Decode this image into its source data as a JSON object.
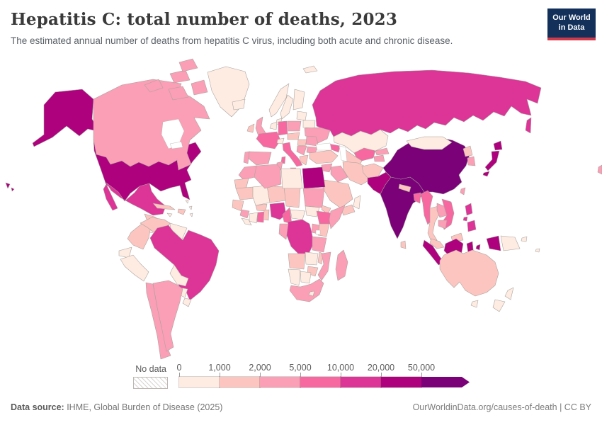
{
  "header": {
    "title": "Hepatitis C: total number of deaths, 2023",
    "subtitle": "The estimated annual number of deaths from hepatitis C virus, including both acute and chronic disease.",
    "logo": {
      "line1": "Our World",
      "line2": "in Data",
      "bg_color": "#12305a",
      "accent_color": "#d0394a"
    }
  },
  "footer": {
    "source_label": "Data source:",
    "source_text": " IHME, Global Burden of Disease (2025)",
    "link_text": "OurWorldinData.org/causes-of-death | CC BY"
  },
  "chart_data": {
    "type": "choropleth",
    "title": "Hepatitis C: total number of deaths, 2023",
    "unit": "deaths",
    "legend": {
      "no_data_label": "No data",
      "tick_labels": [
        "0",
        "1,000",
        "2,000",
        "5,000",
        "10,000",
        "20,000",
        "50,000"
      ],
      "colors": [
        "#feebe2",
        "#fcc5c0",
        "#fa9fb5",
        "#f768a1",
        "#dd3497",
        "#ae017e",
        "#7a0177"
      ],
      "bucket_ranges": [
        "0-1,000",
        "1,000-2,000",
        "2,000-5,000",
        "5,000-10,000",
        "10,000-20,000",
        "20,000-50,000",
        ">50,000"
      ]
    },
    "countries": [
      {
        "id": "united-states",
        "name": "United States",
        "bucket": 5
      },
      {
        "id": "canada",
        "name": "Canada",
        "bucket": 2
      },
      {
        "id": "greenland",
        "name": "Greenland",
        "bucket": 0
      },
      {
        "id": "mexico",
        "name": "Mexico",
        "bucket": 4
      },
      {
        "id": "guatemala-honduras",
        "name": "Guatemala & Honduras",
        "bucket": 1
      },
      {
        "id": "nicaragua-panama",
        "name": "Nicaragua to Panama",
        "bucket": 0
      },
      {
        "id": "cuba",
        "name": "Cuba",
        "bucket": 1
      },
      {
        "id": "hispaniola",
        "name": "Haiti & Dominican Republic",
        "bucket": 1
      },
      {
        "id": "jamaica",
        "name": "Jamaica",
        "bucket": 0
      },
      {
        "id": "lesser-antilles",
        "name": "Lesser Antilles",
        "bucket": 0
      },
      {
        "id": "colombia",
        "name": "Colombia",
        "bucket": 1
      },
      {
        "id": "venezuela",
        "name": "Venezuela",
        "bucket": 1
      },
      {
        "id": "guyanas",
        "name": "Guyana & Suriname",
        "bucket": 0
      },
      {
        "id": "ecuador",
        "name": "Ecuador",
        "bucket": 0
      },
      {
        "id": "peru",
        "name": "Peru",
        "bucket": 0
      },
      {
        "id": "brazil",
        "name": "Brazil",
        "bucket": 4
      },
      {
        "id": "bolivia",
        "name": "Bolivia",
        "bucket": 0
      },
      {
        "id": "paraguay",
        "name": "Paraguay",
        "bucket": 0
      },
      {
        "id": "uruguay",
        "name": "Uruguay",
        "bucket": 0
      },
      {
        "id": "chile",
        "name": "Chile",
        "bucket": 2
      },
      {
        "id": "argentina",
        "name": "Argentina",
        "bucket": 2
      },
      {
        "id": "iceland",
        "name": "Iceland",
        "bucket": 0
      },
      {
        "id": "ireland",
        "name": "Ireland",
        "bucket": 1
      },
      {
        "id": "united-kingdom",
        "name": "United Kingdom",
        "bucket": 2
      },
      {
        "id": "norway",
        "name": "Norway",
        "bucket": 0
      },
      {
        "id": "sweden",
        "name": "Sweden",
        "bucket": 0
      },
      {
        "id": "finland",
        "name": "Finland",
        "bucket": 0
      },
      {
        "id": "denmark",
        "name": "Denmark",
        "bucket": 0
      },
      {
        "id": "baltic-states",
        "name": "Baltic states",
        "bucket": 0
      },
      {
        "id": "belarus",
        "name": "Belarus",
        "bucket": 0
      },
      {
        "id": "poland",
        "name": "Poland",
        "bucket": 2
      },
      {
        "id": "germany",
        "name": "Germany",
        "bucket": 3
      },
      {
        "id": "benelux",
        "name": "Netherlands & Belgium",
        "bucket": 0
      },
      {
        "id": "france",
        "name": "France",
        "bucket": 3
      },
      {
        "id": "spain",
        "name": "Spain",
        "bucket": 2
      },
      {
        "id": "portugal",
        "name": "Portugal",
        "bucket": 2
      },
      {
        "id": "switzerland",
        "name": "Switzerland",
        "bucket": 0
      },
      {
        "id": "italy",
        "name": "Italy",
        "bucket": 3
      },
      {
        "id": "austria-czechia",
        "name": "Austria & Czechia",
        "bucket": 1
      },
      {
        "id": "hungary",
        "name": "Hungary",
        "bucket": 1
      },
      {
        "id": "balkans",
        "name": "Western Balkans",
        "bucket": 2
      },
      {
        "id": "greece",
        "name": "Greece",
        "bucket": 1
      },
      {
        "id": "romania",
        "name": "Romania",
        "bucket": 2
      },
      {
        "id": "bulgaria",
        "name": "Bulgaria",
        "bucket": 2
      },
      {
        "id": "ukraine",
        "name": "Ukraine",
        "bucket": 2
      },
      {
        "id": "russia",
        "name": "Russia",
        "bucket": 4
      },
      {
        "id": "svalbard",
        "name": "Svalbard",
        "bucket": 0
      },
      {
        "id": "kazakhstan",
        "name": "Kazakhstan",
        "bucket": 0
      },
      {
        "id": "uzbekistan",
        "name": "Uzbekistan",
        "bucket": 3
      },
      {
        "id": "turkmenistan",
        "name": "Turkmenistan",
        "bucket": 1
      },
      {
        "id": "kyrgyzstan",
        "name": "Kyrgyzstan",
        "bucket": 2
      },
      {
        "id": "tajikistan",
        "name": "Tajikistan",
        "bucket": 2
      },
      {
        "id": "caucasus",
        "name": "Caucasus states",
        "bucket": 3
      },
      {
        "id": "turkey",
        "name": "Turkey",
        "bucket": 1
      },
      {
        "id": "syria",
        "name": "Syria",
        "bucket": 2
      },
      {
        "id": "jordan-israel",
        "name": "Jordan & Israel",
        "bucket": 0
      },
      {
        "id": "iraq",
        "name": "Iraq",
        "bucket": 2
      },
      {
        "id": "iran",
        "name": "Iran",
        "bucket": 1
      },
      {
        "id": "saudi-arabia",
        "name": "Saudi Arabia",
        "bucket": 1
      },
      {
        "id": "yemen",
        "name": "Yemen",
        "bucket": 1
      },
      {
        "id": "oman",
        "name": "Oman",
        "bucket": 0
      },
      {
        "id": "afghanistan",
        "name": "Afghanistan",
        "bucket": 1
      },
      {
        "id": "pakistan",
        "name": "Pakistan",
        "bucket": 5
      },
      {
        "id": "india",
        "name": "India",
        "bucket": 6
      },
      {
        "id": "nepal",
        "name": "Nepal",
        "bucket": 1
      },
      {
        "id": "bangladesh",
        "name": "Bangladesh",
        "bucket": 3
      },
      {
        "id": "sri-lanka",
        "name": "Sri Lanka",
        "bucket": 1
      },
      {
        "id": "china",
        "name": "China",
        "bucket": 6
      },
      {
        "id": "mongolia",
        "name": "Mongolia",
        "bucket": 0
      },
      {
        "id": "north-korea",
        "name": "North Korea",
        "bucket": 1
      },
      {
        "id": "south-korea",
        "name": "South Korea",
        "bucket": 2
      },
      {
        "id": "japan",
        "name": "Japan",
        "bucket": 5
      },
      {
        "id": "taiwan",
        "name": "Taiwan",
        "bucket": 2
      },
      {
        "id": "myanmar",
        "name": "Myanmar",
        "bucket": 3
      },
      {
        "id": "thailand",
        "name": "Thailand",
        "bucket": 1
      },
      {
        "id": "laos",
        "name": "Laos",
        "bucket": 2
      },
      {
        "id": "vietnam",
        "name": "Vietnam",
        "bucket": 3
      },
      {
        "id": "cambodia",
        "name": "Cambodia",
        "bucket": 2
      },
      {
        "id": "malaysia",
        "name": "Malaysia",
        "bucket": 1
      },
      {
        "id": "philippines",
        "name": "Philippines",
        "bucket": 4
      },
      {
        "id": "indonesia",
        "name": "Indonesia",
        "bucket": 5
      },
      {
        "id": "papua-new-guinea",
        "name": "Papua New Guinea",
        "bucket": 0
      },
      {
        "id": "australia",
        "name": "Australia",
        "bucket": 1
      },
      {
        "id": "new-zealand",
        "name": "New Zealand",
        "bucket": 0
      },
      {
        "id": "fiji",
        "name": "Fiji",
        "bucket": 0
      },
      {
        "id": "morocco",
        "name": "Morocco",
        "bucket": 2
      },
      {
        "id": "western-sahara",
        "name": "Western Sahara",
        "bucket": 1
      },
      {
        "id": "mauritania",
        "name": "Mauritania",
        "bucket": 1
      },
      {
        "id": "senegal",
        "name": "Senegal",
        "bucket": 1
      },
      {
        "id": "guinea",
        "name": "Guinea",
        "bucket": 2
      },
      {
        "id": "sierra-leone-liberia",
        "name": "Sierra Leone & Liberia",
        "bucket": 0
      },
      {
        "id": "mali",
        "name": "Mali",
        "bucket": 0
      },
      {
        "id": "burkina-faso",
        "name": "Burkina Faso",
        "bucket": 1
      },
      {
        "id": "ivory-coast",
        "name": "Cote d'Ivoire",
        "bucket": 0
      },
      {
        "id": "ghana",
        "name": "Ghana",
        "bucket": 3
      },
      {
        "id": "togo-benin",
        "name": "Togo & Benin",
        "bucket": 1
      },
      {
        "id": "niger",
        "name": "Niger",
        "bucket": 1
      },
      {
        "id": "nigeria",
        "name": "Nigeria",
        "bucket": 4
      },
      {
        "id": "chad",
        "name": "Chad",
        "bucket": 1
      },
      {
        "id": "cameroon",
        "name": "Cameroon",
        "bucket": 3
      },
      {
        "id": "central-african-republic",
        "name": "Central African Republic",
        "bucket": 0
      },
      {
        "id": "tunisia",
        "name": "Tunisia",
        "bucket": 2
      },
      {
        "id": "algeria",
        "name": "Algeria",
        "bucket": 2
      },
      {
        "id": "libya",
        "name": "Libya",
        "bucket": 0
      },
      {
        "id": "egypt",
        "name": "Egypt",
        "bucket": 5
      },
      {
        "id": "sudan",
        "name": "Sudan",
        "bucket": 2
      },
      {
        "id": "south-sudan",
        "name": "South Sudan",
        "bucket": 0
      },
      {
        "id": "eritrea",
        "name": "Eritrea",
        "bucket": 1
      },
      {
        "id": "ethiopia",
        "name": "Ethiopia",
        "bucket": 3
      },
      {
        "id": "somalia",
        "name": "Somalia",
        "bucket": 2
      },
      {
        "id": "kenya",
        "name": "Kenya",
        "bucket": 1
      },
      {
        "id": "uganda",
        "name": "Uganda",
        "bucket": 2
      },
      {
        "id": "drc",
        "name": "Democratic Republic of Congo",
        "bucket": 4
      },
      {
        "id": "gabon-congo",
        "name": "Gabon & Congo",
        "bucket": 2
      },
      {
        "id": "tanzania",
        "name": "Tanzania",
        "bucket": 2
      },
      {
        "id": "angola",
        "name": "Angola",
        "bucket": 1
      },
      {
        "id": "zambia",
        "name": "Zambia",
        "bucket": 0
      },
      {
        "id": "malawi",
        "name": "Malawi",
        "bucket": 1
      },
      {
        "id": "mozambique",
        "name": "Mozambique",
        "bucket": 2
      },
      {
        "id": "zimbabwe",
        "name": "Zimbabwe",
        "bucket": 1
      },
      {
        "id": "botswana",
        "name": "Botswana",
        "bucket": 0
      },
      {
        "id": "namibia",
        "name": "Namibia",
        "bucket": 0
      },
      {
        "id": "south-africa",
        "name": "South Africa",
        "bucket": 2
      },
      {
        "id": "lesotho",
        "name": "Lesotho",
        "bucket": 0
      },
      {
        "id": "madagascar",
        "name": "Madagascar",
        "bucket": 2
      },
      {
        "id": "pacific-sliver",
        "name": "Pacific islands",
        "bucket": 2
      }
    ]
  }
}
